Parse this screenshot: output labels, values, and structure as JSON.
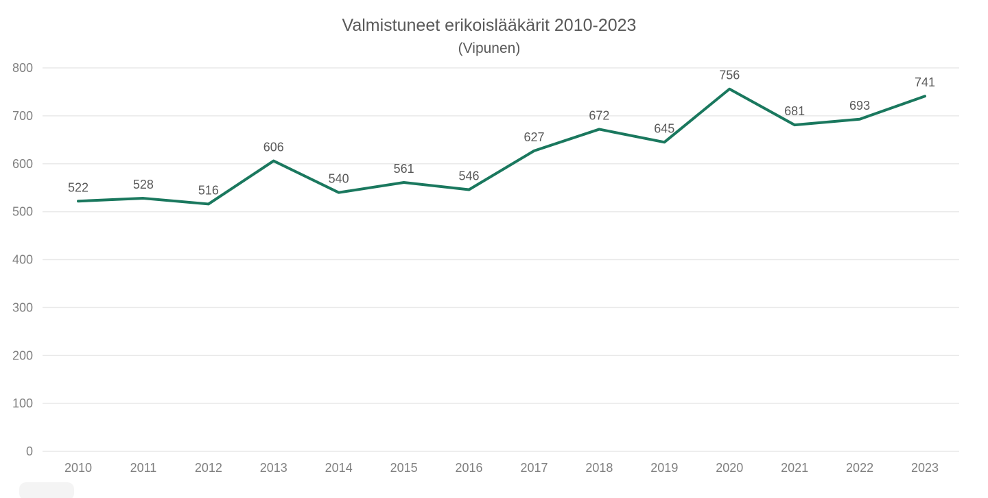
{
  "chart_data": {
    "type": "line",
    "title": "Valmistuneet erikoislääkärit 2010-2023",
    "subtitle": "(Vipunen)",
    "categories": [
      "2010",
      "2011",
      "2012",
      "2013",
      "2014",
      "2015",
      "2016",
      "2017",
      "2018",
      "2019",
      "2020",
      "2021",
      "2022",
      "2023"
    ],
    "values": [
      522,
      528,
      516,
      606,
      540,
      561,
      546,
      627,
      672,
      645,
      756,
      681,
      693,
      741
    ],
    "xlabel": "",
    "ylabel": "",
    "ylim": [
      0,
      800
    ],
    "y_ticks": [
      0,
      100,
      200,
      300,
      400,
      500,
      600,
      700,
      800
    ],
    "grid": true,
    "legend_position": "none",
    "data_labels_visible": true,
    "line_color": "#1a785e",
    "grid_color": "#e9e9e9",
    "axis_label_color": "#808080",
    "data_label_color": "#595959",
    "title_color": "#595959",
    "background_color": "#ffffff"
  }
}
